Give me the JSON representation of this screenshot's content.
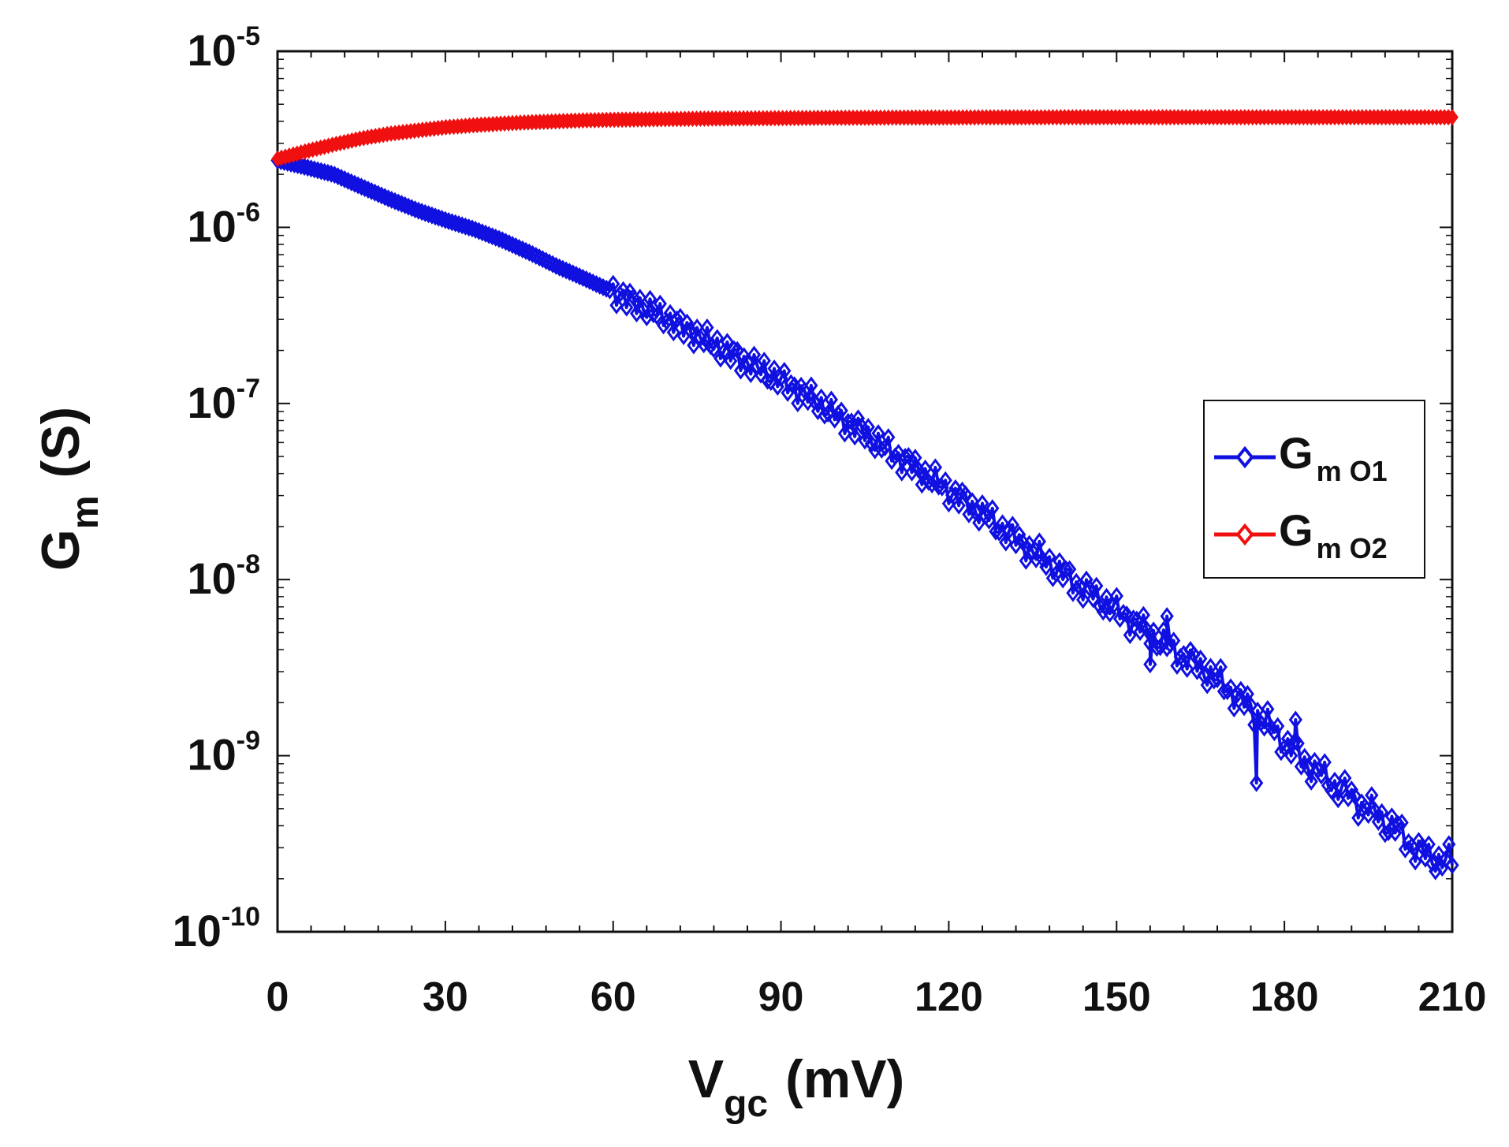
{
  "chart_data": {
    "type": "line",
    "yscale": "log",
    "xlabel": {
      "main": "V",
      "sub": "gc",
      "unit": "(mV)"
    },
    "ylabel": {
      "main": "G",
      "sub": "m",
      "unit": "(S)"
    },
    "xlim": [
      0,
      210
    ],
    "ylim": [
      1e-10,
      1e-05
    ],
    "xticks": [
      0,
      30,
      60,
      90,
      120,
      150,
      180,
      210
    ],
    "xtick_labels": [
      "0",
      "30",
      "60",
      "90",
      "120",
      "150",
      "180",
      "210"
    ],
    "yticks": [
      {
        "base": "10",
        "exp": "-5",
        "value": 1e-05
      },
      {
        "base": "10",
        "exp": "-6",
        "value": 1e-06
      },
      {
        "base": "10",
        "exp": "-7",
        "value": 1e-07
      },
      {
        "base": "10",
        "exp": "-8",
        "value": 1e-08
      },
      {
        "base": "10",
        "exp": "-9",
        "value": 1e-09
      },
      {
        "base": "10",
        "exp": "-10",
        "value": 1e-10
      }
    ],
    "legend_position": "right",
    "series": [
      {
        "name": "Gm O1",
        "label_main": "G",
        "label_sub": "m O1",
        "color": "#1010e0",
        "marker": "diamond-open",
        "x": [
          0,
          5,
          10,
          15,
          20,
          25,
          30,
          35,
          40,
          45,
          50,
          55,
          60,
          65,
          70,
          75,
          80,
          85,
          90,
          95,
          100,
          105,
          110,
          115,
          120,
          125,
          130,
          135,
          140,
          145,
          150,
          155,
          160,
          165,
          170,
          175,
          180,
          185,
          190,
          195,
          200,
          205,
          210
        ],
        "y": [
          2.4e-06,
          2.2e-06,
          2e-06,
          1.7e-06,
          1.45e-06,
          1.25e-06,
          1.1e-06,
          9.8e-07,
          8.5e-07,
          7.2e-07,
          6e-07,
          5.1e-07,
          4.3e-07,
          3.6e-07,
          3e-07,
          2.45e-07,
          2e-07,
          1.65e-07,
          1.35e-07,
          1.1e-07,
          8.5e-08,
          6.8e-08,
          5.2e-08,
          4.1e-08,
          3.2e-08,
          2.5e-08,
          1.9e-08,
          1.45e-08,
          1.1e-08,
          8.5e-09,
          6.7e-09,
          5.2e-09,
          4e-09,
          3.2e-09,
          2.4e-09,
          1.75e-09,
          1.2e-09,
          8.5e-10,
          6.5e-10,
          5e-10,
          3.8e-10,
          2.7e-10,
          2.5e-10
        ],
        "glitches": [
          {
            "x": 175,
            "y": 7e-10
          },
          {
            "x": 182,
            "y": 1.6e-09
          },
          {
            "x": 159,
            "y": 6.2e-09
          },
          {
            "x": 156,
            "y": 3.3e-09
          }
        ]
      },
      {
        "name": "Gm O2",
        "label_main": "G",
        "label_sub": "m O2",
        "color": "#f01010",
        "marker": "diamond-open",
        "x": [
          0,
          5,
          10,
          15,
          20,
          25,
          30,
          35,
          40,
          45,
          50,
          55,
          60,
          65,
          70,
          75,
          80,
          85,
          90,
          95,
          100,
          105,
          110,
          115,
          120,
          125,
          130,
          135,
          140,
          145,
          150,
          155,
          160,
          165,
          170,
          175,
          180,
          185,
          190,
          195,
          200,
          205,
          210
        ],
        "y": [
          2.45e-06,
          2.7e-06,
          2.95e-06,
          3.2e-06,
          3.4e-06,
          3.55e-06,
          3.7e-06,
          3.8e-06,
          3.88e-06,
          3.95e-06,
          4e-06,
          4.05e-06,
          4.08e-06,
          4.1e-06,
          4.12e-06,
          4.14e-06,
          4.15e-06,
          4.16e-06,
          4.17e-06,
          4.18e-06,
          4.19e-06,
          4.19e-06,
          4.2e-06,
          4.2e-06,
          4.2e-06,
          4.21e-06,
          4.21e-06,
          4.21e-06,
          4.22e-06,
          4.22e-06,
          4.22e-06,
          4.22e-06,
          4.22e-06,
          4.22e-06,
          4.22e-06,
          4.22e-06,
          4.22e-06,
          4.22e-06,
          4.22e-06,
          4.22e-06,
          4.22e-06,
          4.22e-06,
          4.22e-06
        ],
        "glitches": []
      }
    ]
  }
}
